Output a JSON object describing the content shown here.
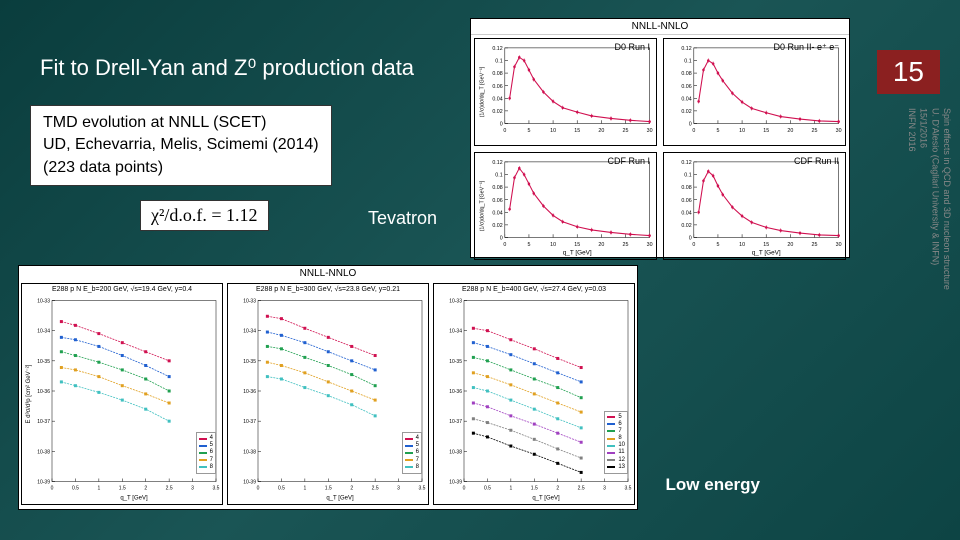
{
  "slide_number": "15",
  "title": "Fit to Drell-Yan and Z⁰ production data",
  "caption": {
    "line1": "TMD evolution at NNLL (SCET)",
    "line2": "UD, Echevarria, Melis, Scimemi (2014)",
    "line3": "(223 data points)"
  },
  "chi2_text": "χ²/d.o.f. = 1.12",
  "tevatron_label": "Tevatron",
  "low_energy_label": "Low energy",
  "sidebar": {
    "line1": "Spin effects in QCD and 3D nucleon structure",
    "line2": "U. D'Alesio (Cagliari University & INFN)",
    "line3": "15/1/2016",
    "line4": "INFN 2016"
  },
  "top_chart": {
    "title": "NNLL-NNLO",
    "ylabel": "(1/σ)dσ/dq_T [GeV⁻¹]",
    "xlabel": "q_T [GeV]",
    "panels": [
      {
        "label": "D0 Run I",
        "ylim": [
          0,
          0.12
        ],
        "yticks": [
          0,
          0.02,
          0.04,
          0.06,
          0.08,
          0.1,
          0.12
        ],
        "xlim": [
          0,
          30
        ],
        "xticks": [
          0,
          5,
          10,
          15,
          20,
          25,
          30
        ],
        "color": "#d01050",
        "points": [
          [
            1,
            0.04
          ],
          [
            2,
            0.09
          ],
          [
            3,
            0.105
          ],
          [
            4,
            0.1
          ],
          [
            5,
            0.085
          ],
          [
            6,
            0.07
          ],
          [
            8,
            0.05
          ],
          [
            10,
            0.035
          ],
          [
            12,
            0.025
          ],
          [
            15,
            0.018
          ],
          [
            18,
            0.012
          ],
          [
            22,
            0.008
          ],
          [
            26,
            0.005
          ],
          [
            30,
            0.003
          ]
        ]
      },
      {
        "label": "D0 Run II- e⁺ e⁻",
        "ylim": [
          0,
          0.12
        ],
        "yticks": [
          0,
          0.02,
          0.04,
          0.06,
          0.08,
          0.1,
          0.12
        ],
        "xlim": [
          0,
          30
        ],
        "xticks": [
          0,
          5,
          10,
          15,
          20,
          25,
          30
        ],
        "color": "#d01050",
        "points": [
          [
            1,
            0.035
          ],
          [
            2,
            0.085
          ],
          [
            3,
            0.1
          ],
          [
            4,
            0.095
          ],
          [
            5,
            0.08
          ],
          [
            6,
            0.068
          ],
          [
            8,
            0.048
          ],
          [
            10,
            0.034
          ],
          [
            12,
            0.024
          ],
          [
            15,
            0.017
          ],
          [
            18,
            0.011
          ],
          [
            22,
            0.007
          ],
          [
            26,
            0.004
          ],
          [
            30,
            0.003
          ]
        ]
      },
      {
        "label": "CDF Run I",
        "ylim": [
          0,
          0.12
        ],
        "yticks": [
          0,
          0.02,
          0.04,
          0.06,
          0.08,
          0.1,
          0.12
        ],
        "xlim": [
          0,
          30
        ],
        "xticks": [
          0,
          5,
          10,
          15,
          20,
          25,
          30
        ],
        "color": "#d01050",
        "points": [
          [
            1,
            0.045
          ],
          [
            2,
            0.095
          ],
          [
            3,
            0.11
          ],
          [
            4,
            0.1
          ],
          [
            5,
            0.085
          ],
          [
            6,
            0.07
          ],
          [
            8,
            0.05
          ],
          [
            10,
            0.035
          ],
          [
            12,
            0.025
          ],
          [
            15,
            0.017
          ],
          [
            18,
            0.012
          ],
          [
            22,
            0.008
          ],
          [
            26,
            0.005
          ],
          [
            30,
            0.003
          ]
        ]
      },
      {
        "label": "CDF Run II",
        "ylim": [
          0,
          0.12
        ],
        "yticks": [
          0,
          0.02,
          0.04,
          0.06,
          0.08,
          0.1,
          0.12
        ],
        "xlim": [
          0,
          30
        ],
        "xticks": [
          0,
          5,
          10,
          15,
          20,
          25,
          30
        ],
        "color": "#d01050",
        "points": [
          [
            1,
            0.04
          ],
          [
            2,
            0.09
          ],
          [
            3,
            0.105
          ],
          [
            4,
            0.098
          ],
          [
            5,
            0.082
          ],
          [
            6,
            0.068
          ],
          [
            8,
            0.048
          ],
          [
            10,
            0.034
          ],
          [
            12,
            0.024
          ],
          [
            15,
            0.016
          ],
          [
            18,
            0.011
          ],
          [
            22,
            0.007
          ],
          [
            26,
            0.004
          ],
          [
            30,
            0.003
          ]
        ]
      }
    ]
  },
  "bottom_chart": {
    "title": "NNLL-NNLO",
    "ylabel": "E d³σ/d³p [cm² GeV⁻²]",
    "xlabel": "q_T [GeV]",
    "xlim": [
      0,
      3.5
    ],
    "xticks": [
      0,
      0.5,
      1,
      1.5,
      2,
      2.5,
      3,
      3.5
    ],
    "panels": [
      {
        "title": "E288 p N E_b=200 GeV, √s=19.4 GeV, y=0.4",
        "legend": [
          "4<M<5 GeV",
          "5<M<6 GeV",
          "6<M<7 GeV",
          "7<M<8 GeV",
          "8<M<9 GeV"
        ],
        "colors": [
          "#d01050",
          "#2060d0",
          "#20a050",
          "#e0a020",
          "#40c0c0"
        ],
        "series": [
          [
            [
              0.2,
              2e-34
            ],
            [
              0.5,
              1.5e-34
            ],
            [
              1,
              8e-35
            ],
            [
              1.5,
              4e-35
            ],
            [
              2,
              2e-35
            ],
            [
              2.5,
              1e-35
            ]
          ],
          [
            [
              0.2,
              6e-35
            ],
            [
              0.5,
              5e-35
            ],
            [
              1,
              3e-35
            ],
            [
              1.5,
              1.5e-35
            ],
            [
              2,
              7e-36
            ],
            [
              2.5,
              3e-36
            ]
          ],
          [
            [
              0.2,
              2e-35
            ],
            [
              0.5,
              1.5e-35
            ],
            [
              1,
              9e-36
            ],
            [
              1.5,
              5e-36
            ],
            [
              2,
              2.5e-36
            ],
            [
              2.5,
              1e-36
            ]
          ],
          [
            [
              0.2,
              6e-36
            ],
            [
              0.5,
              5e-36
            ],
            [
              1,
              3e-36
            ],
            [
              1.5,
              1.5e-36
            ],
            [
              2,
              8e-37
            ],
            [
              2.5,
              4e-37
            ]
          ],
          [
            [
              0.2,
              2e-36
            ],
            [
              0.5,
              1.5e-36
            ],
            [
              1,
              9e-37
            ],
            [
              1.5,
              5e-37
            ],
            [
              2,
              2.5e-37
            ],
            [
              2.5,
              1e-37
            ]
          ]
        ]
      },
      {
        "title": "E288 p N E_b=300 GeV, √s=23.8 GeV, y=0.21",
        "legend": [
          "4<M<5 GeV",
          "5<M<6 GeV",
          "6<M<7 GeV",
          "7<M<8 GeV",
          "8<M<9 GeV"
        ],
        "colors": [
          "#d01050",
          "#2060d0",
          "#20a050",
          "#e0a020",
          "#40c0c0"
        ],
        "series": [
          [
            [
              0.2,
              3e-34
            ],
            [
              0.5,
              2.5e-34
            ],
            [
              1,
              1.2e-34
            ],
            [
              1.5,
              6e-35
            ],
            [
              2,
              3e-35
            ],
            [
              2.5,
              1.5e-35
            ]
          ],
          [
            [
              0.2,
              9e-35
            ],
            [
              0.5,
              7e-35
            ],
            [
              1,
              4e-35
            ],
            [
              1.5,
              2e-35
            ],
            [
              2,
              1e-35
            ],
            [
              2.5,
              5e-36
            ]
          ],
          [
            [
              0.2,
              3e-35
            ],
            [
              0.5,
              2.5e-35
            ],
            [
              1,
              1.3e-35
            ],
            [
              1.5,
              7e-36
            ],
            [
              2,
              3.5e-36
            ],
            [
              2.5,
              1.5e-36
            ]
          ],
          [
            [
              0.2,
              9e-36
            ],
            [
              0.5,
              7e-36
            ],
            [
              1,
              4e-36
            ],
            [
              1.5,
              2e-36
            ],
            [
              2,
              1e-36
            ],
            [
              2.5,
              5e-37
            ]
          ],
          [
            [
              0.2,
              3e-36
            ],
            [
              0.5,
              2.5e-36
            ],
            [
              1,
              1.3e-36
            ],
            [
              1.5,
              7e-37
            ],
            [
              2,
              3.5e-37
            ],
            [
              2.5,
              1.5e-37
            ]
          ]
        ]
      },
      {
        "title": "E288 p N E_b=400 GeV, √s=27.4 GeV, y=0.03",
        "legend": [
          "5<M<6 GeV",
          "6<M<7 GeV",
          "7<M<8 GeV",
          "8<M<9 GeV",
          "10<M<11 GeV",
          "11<M<12 GeV",
          "12<M<13 GeV",
          "13<M<14 GeV"
        ],
        "colors": [
          "#d01050",
          "#2060d0",
          "#20a050",
          "#e0a020",
          "#40c0c0",
          "#a040c0",
          "#808080",
          "#000000"
        ],
        "series": [
          [
            [
              0.2,
              1.2e-34
            ],
            [
              0.5,
              1e-34
            ],
            [
              1,
              5e-35
            ],
            [
              1.5,
              2.5e-35
            ],
            [
              2,
              1.2e-35
            ],
            [
              2.5,
              6e-36
            ]
          ],
          [
            [
              0.2,
              4e-35
            ],
            [
              0.5,
              3e-35
            ],
            [
              1,
              1.6e-35
            ],
            [
              1.5,
              8e-36
            ],
            [
              2,
              4e-36
            ],
            [
              2.5,
              2e-36
            ]
          ],
          [
            [
              0.2,
              1.3e-35
            ],
            [
              0.5,
              1e-35
            ],
            [
              1,
              5e-36
            ],
            [
              1.5,
              2.5e-36
            ],
            [
              2,
              1.3e-36
            ],
            [
              2.5,
              6e-37
            ]
          ],
          [
            [
              0.2,
              4e-36
            ],
            [
              0.5,
              3e-36
            ],
            [
              1,
              1.6e-36
            ],
            [
              1.5,
              8e-37
            ],
            [
              2,
              4e-37
            ],
            [
              2.5,
              2e-37
            ]
          ],
          [
            [
              0.2,
              1.3e-36
            ],
            [
              0.5,
              1e-36
            ],
            [
              1,
              5e-37
            ],
            [
              1.5,
              2.5e-37
            ],
            [
              2,
              1.2e-37
            ],
            [
              2.5,
              6e-38
            ]
          ],
          [
            [
              0.2,
              4e-37
            ],
            [
              0.5,
              3e-37
            ],
            [
              1,
              1.5e-37
            ],
            [
              1.5,
              8e-38
            ],
            [
              2,
              4e-38
            ],
            [
              2.5,
              2e-38
            ]
          ],
          [
            [
              0.2,
              1.2e-37
            ],
            [
              0.5,
              9e-38
            ],
            [
              1,
              5e-38
            ],
            [
              1.5,
              2.5e-38
            ],
            [
              2,
              1.2e-38
            ],
            [
              2.5,
              6e-39
            ]
          ],
          [
            [
              0.2,
              4e-38
            ],
            [
              0.5,
              3e-38
            ],
            [
              1,
              1.5e-38
            ],
            [
              1.5,
              8e-39
            ],
            [
              2,
              4e-39
            ],
            [
              2.5,
              2e-39
            ]
          ]
        ]
      }
    ]
  }
}
